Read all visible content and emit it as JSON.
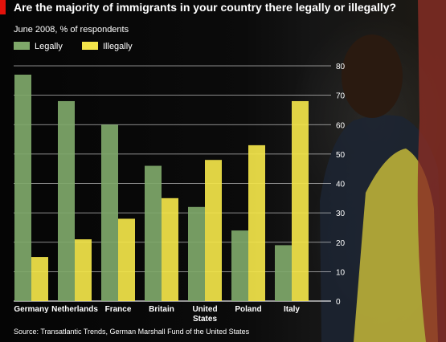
{
  "chart_data": {
    "type": "bar",
    "title": "Are the majority of immigrants in your country there legally or illegally?",
    "subtitle": "June 2008, % of respondents",
    "categories": [
      "Germany",
      "Netherlands",
      "France",
      "Britain",
      "United States",
      "Poland",
      "Italy"
    ],
    "series": [
      {
        "name": "Legally",
        "values": [
          77,
          68,
          60,
          46,
          32,
          24,
          19
        ],
        "color": "#7fa86a"
      },
      {
        "name": "Illegally",
        "values": [
          15,
          21,
          28,
          35,
          48,
          53,
          68
        ],
        "color": "#f3e54a"
      }
    ],
    "ylim": [
      0,
      80
    ],
    "yticks": [
      0,
      10,
      20,
      30,
      40,
      50,
      60,
      70,
      80
    ],
    "axis_side": "right",
    "grid": true,
    "legend_position": "top-left",
    "source": "Source: Transatlantic Trends, German Marshall Fund of the United States"
  },
  "colors": {
    "accent": "#e3120b",
    "gridline": "#ffffff",
    "text": "#ffffff"
  }
}
